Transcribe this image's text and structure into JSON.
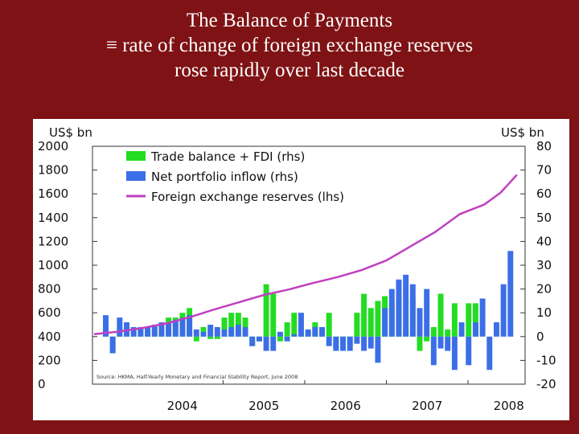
{
  "slide": {
    "title_line1": "The Balance of Payments",
    "title_line2": "≡ rate of change of foreign exchange reserves",
    "title_line3": "rose rapidly over last decade",
    "background": "#7e1214"
  },
  "chart_data": {
    "type": "bar",
    "left_axis_label": "US$ bn",
    "right_axis_label": "US$ bn",
    "left_ticks": [
      2000,
      1800,
      1600,
      1400,
      1200,
      1000,
      800,
      600,
      400,
      200,
      0
    ],
    "right_ticks": [
      80,
      70,
      60,
      50,
      40,
      30,
      20,
      10,
      0,
      -10,
      -20
    ],
    "ylim_left": [
      0,
      2000
    ],
    "ylim_right": [
      -20,
      80
    ],
    "x_tick_labels": [
      "2004",
      "2005",
      "2006",
      "2007",
      "2008"
    ],
    "legend": {
      "position": "top-left",
      "entries": [
        {
          "label": "Trade balance + FDI (rhs)",
          "color": "#22dd22"
        },
        {
          "label": "Net portfolio inflow (rhs)",
          "color": "#3c6ee8"
        },
        {
          "label": "Foreign exchange reserves (lhs)",
          "color": "#c040c0"
        }
      ]
    },
    "source_note": "Source: HKMA, Half-Yearly Monetary and Financial Stability Report, June 2008",
    "series": [
      {
        "name": "Trade balance + FDI (rhs)",
        "axis": "right",
        "color": "#22dd22",
        "values": [
          4,
          -7,
          4,
          2,
          2,
          3,
          3,
          3,
          4,
          8,
          8,
          10,
          12,
          -2,
          4,
          -1,
          -1,
          8,
          10,
          10,
          8,
          -4,
          -2,
          22,
          18,
          -2,
          6,
          10,
          2,
          2,
          6,
          3,
          10,
          -5,
          -4,
          -4,
          10,
          18,
          12,
          15,
          17,
          15,
          18,
          3,
          16,
          -6,
          -2,
          4,
          18,
          3,
          14,
          2,
          14,
          14
        ]
      },
      {
        "name": "Net portfolio inflow (rhs)",
        "axis": "right",
        "color": "#3c6ee8",
        "values": [
          9,
          -7,
          8,
          6,
          4,
          4,
          4,
          5,
          6,
          6,
          7,
          8,
          9,
          3,
          2,
          5,
          4,
          3,
          4,
          5,
          4,
          -4,
          -2,
          -6,
          -6,
          2,
          -2,
          1,
          10,
          3,
          4,
          4,
          -4,
          -6,
          -6,
          -6,
          -3,
          -6,
          -5,
          -11,
          12,
          20,
          24,
          26,
          22,
          12,
          20,
          -12,
          -5,
          -6,
          -14,
          6,
          -12,
          6,
          16,
          -14,
          6,
          22,
          36
        ]
      },
      {
        "name": "Foreign exchange reserves (lhs)",
        "axis": "left",
        "color": "#c040c0",
        "x": [
          2003.02,
          2003.3,
          2003.6,
          2003.9,
          2004.2,
          2004.5,
          2004.8,
          2005.1,
          2005.4,
          2005.7,
          2006.0,
          2006.3,
          2006.6,
          2006.9,
          2007.2,
          2007.5,
          2007.8,
          2008.0,
          2008.2
        ],
        "values": [
          420,
          440,
          470,
          510,
          565,
          630,
          690,
          750,
          795,
          850,
          900,
          960,
          1040,
          1160,
          1280,
          1430,
          1510,
          1610,
          1760
        ]
      }
    ]
  }
}
